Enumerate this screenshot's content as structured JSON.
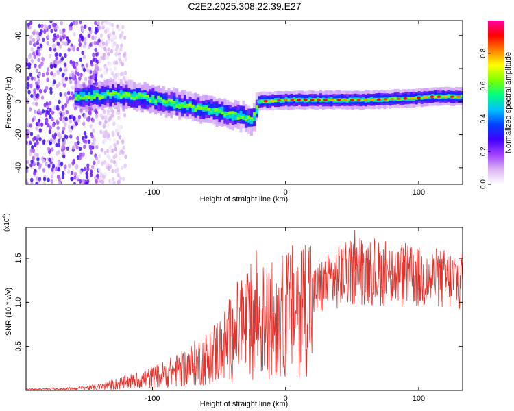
{
  "figure_title": "C2E2.2025.308.22.39.E27",
  "colors": {
    "snr_line": "#e8302a",
    "colormap": [
      "#ffffff",
      "#d9b3f2",
      "#a040ff",
      "#4000ff",
      "#0040ff",
      "#00c0ff",
      "#00ff80",
      "#80ff00",
      "#ffff00",
      "#ff8000",
      "#ff0000",
      "#ff00a0"
    ]
  },
  "chart_data": [
    {
      "type": "heatmap",
      "xlabel": "Height of straight line (km)",
      "ylabel": "Frequency (Hz)",
      "xlim": [
        -195,
        133
      ],
      "ylim": [
        -50,
        49
      ],
      "xticks": [
        -100,
        0,
        100
      ],
      "xtick_labels": [
        "-100",
        "0",
        "100"
      ],
      "yticks": [
        -40,
        -20,
        0,
        20,
        40
      ],
      "ytick_labels": [
        "-40",
        "-20",
        "0",
        "20",
        "40"
      ],
      "colorbar": {
        "label": "Normalized spectral amplitude",
        "range": [
          0,
          1
        ],
        "ticks": [
          0.0,
          0.2,
          0.4,
          0.6,
          0.8
        ],
        "tick_labels": [
          "0.0",
          "0.2",
          "0.4",
          "0.6",
          "0.8"
        ]
      },
      "ridge": [
        {
          "x": -155,
          "y": 3
        },
        {
          "x": -130,
          "y": 4
        },
        {
          "x": -110,
          "y": 3
        },
        {
          "x": -95,
          "y": 1
        },
        {
          "x": -80,
          "y": -2
        },
        {
          "x": -65,
          "y": -4
        },
        {
          "x": -50,
          "y": -6
        },
        {
          "x": -40,
          "y": -8
        },
        {
          "x": -33,
          "y": -9
        },
        {
          "x": -25,
          "y": -11
        },
        {
          "x": -20,
          "y": 0
        },
        {
          "x": 0,
          "y": 1
        },
        {
          "x": 30,
          "y": 1
        },
        {
          "x": 60,
          "y": 1
        },
        {
          "x": 95,
          "y": 2
        },
        {
          "x": 110,
          "y": 3
        },
        {
          "x": 133,
          "y": 3
        }
      ],
      "noise_region_x": [
        -195,
        -140
      ]
    },
    {
      "type": "line",
      "xlabel": "Height of straight line (km)",
      "ylabel": "SNR (10 * v/v)",
      "y_multiplier_label": "(x10",
      "y_multiplier_exponent": "4",
      "y_multiplier_close": ")",
      "xlim": [
        -195,
        133
      ],
      "ylim": [
        0,
        18500
      ],
      "xticks": [
        -100,
        0,
        100
      ],
      "xtick_labels": [
        "-100",
        "0",
        "100"
      ],
      "yticks": [
        5000,
        10000,
        15000
      ],
      "ytick_labels": [
        "0.5",
        "1.0",
        "1.5"
      ],
      "series": [
        {
          "envelope": [
            {
              "x": -195,
              "y": 100
            },
            {
              "x": -160,
              "y": 200
            },
            {
              "x": -140,
              "y": 400
            },
            {
              "x": -120,
              "y": 900
            },
            {
              "x": -100,
              "y": 1500
            },
            {
              "x": -80,
              "y": 2300
            },
            {
              "x": -60,
              "y": 3600
            },
            {
              "x": -45,
              "y": 5200
            },
            {
              "x": -35,
              "y": 7000
            },
            {
              "x": -25,
              "y": 8000
            },
            {
              "x": -15,
              "y": 7800
            },
            {
              "x": -5,
              "y": 8200
            },
            {
              "x": 5,
              "y": 9000
            },
            {
              "x": 15,
              "y": 10000
            },
            {
              "x": 25,
              "y": 11500
            },
            {
              "x": 35,
              "y": 12500
            },
            {
              "x": 45,
              "y": 13200
            },
            {
              "x": 55,
              "y": 13500
            },
            {
              "x": 70,
              "y": 13300
            },
            {
              "x": 85,
              "y": 13000
            },
            {
              "x": 100,
              "y": 12800
            },
            {
              "x": 115,
              "y": 12600
            },
            {
              "x": 133,
              "y": 12600
            }
          ],
          "spikes": [
            {
              "x": -22,
              "y": 15900
            },
            {
              "x": -33,
              "y": 12500
            },
            {
              "x": -27,
              "y": 12300
            },
            {
              "x": -40,
              "y": 9200
            },
            {
              "x": 42,
              "y": 16000
            },
            {
              "x": 52,
              "y": 18200
            },
            {
              "x": 57,
              "y": 17000
            },
            {
              "x": 62,
              "y": 16200
            },
            {
              "x": 80,
              "y": 15800
            },
            {
              "x": 96,
              "y": 15400
            }
          ]
        }
      ]
    }
  ]
}
